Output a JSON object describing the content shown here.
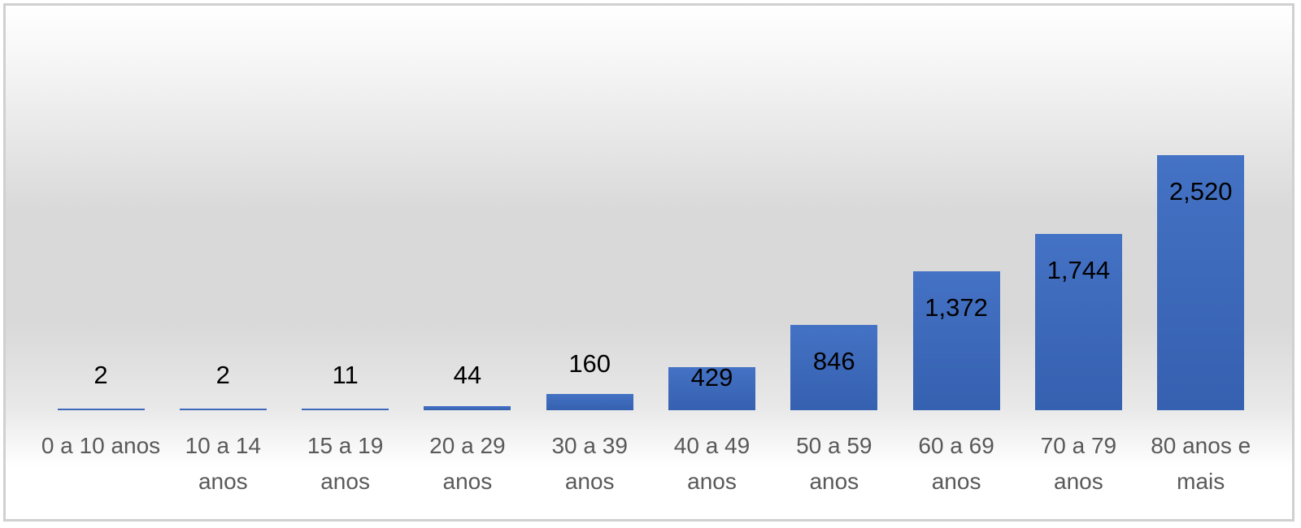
{
  "chart_data": {
    "type": "bar",
    "categories": [
      "0 a 10 anos",
      "10 a 14 anos",
      "15 a 19 anos",
      "20 a 29 anos",
      "30 a 39 anos",
      "40 a 49 anos",
      "50 a 59 anos",
      "60 a 69 anos",
      "70 a 79 anos",
      "80 anos e mais"
    ],
    "values": [
      2,
      2,
      11,
      44,
      160,
      429,
      846,
      1372,
      1744,
      2520
    ],
    "value_labels": [
      "2",
      "2",
      "11",
      "44",
      "160",
      "429",
      "846",
      "1,372",
      "1,744",
      "2,520"
    ],
    "color": "#4472c4"
  }
}
